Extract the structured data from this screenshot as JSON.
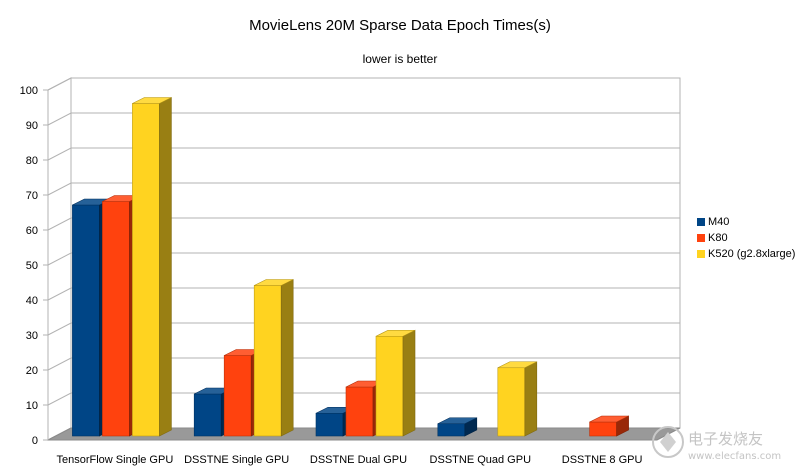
{
  "chart_data": {
    "type": "bar",
    "title": "MovieLens 20M Sparse Data Epoch Times(s)",
    "subtitle": "lower is better",
    "categories": [
      "TensorFlow Single GPU",
      "DSSTNE Single GPU",
      "DSSTNE Dual GPU",
      "DSSTNE Quad GPU",
      "DSSTNE 8 GPU"
    ],
    "series": [
      {
        "name": "M40",
        "color": "#004586",
        "values": [
          66,
          12,
          6.5,
          3.5,
          null
        ]
      },
      {
        "name": "K80",
        "color": "#ff420e",
        "values": [
          67,
          23,
          14,
          null,
          4
        ]
      },
      {
        "name": "K520 (g2.8xlarge)",
        "color": "#ffd320",
        "values": [
          95,
          43,
          28.5,
          19.5,
          null
        ]
      }
    ],
    "ylim": [
      0,
      100
    ],
    "yticks": [
      0,
      10,
      20,
      30,
      40,
      50,
      60,
      70,
      80,
      90,
      100
    ],
    "grid": true,
    "legend_position": "right"
  },
  "watermark": {
    "brand": "电子发烧友",
    "url": "www.elecfans.com"
  }
}
